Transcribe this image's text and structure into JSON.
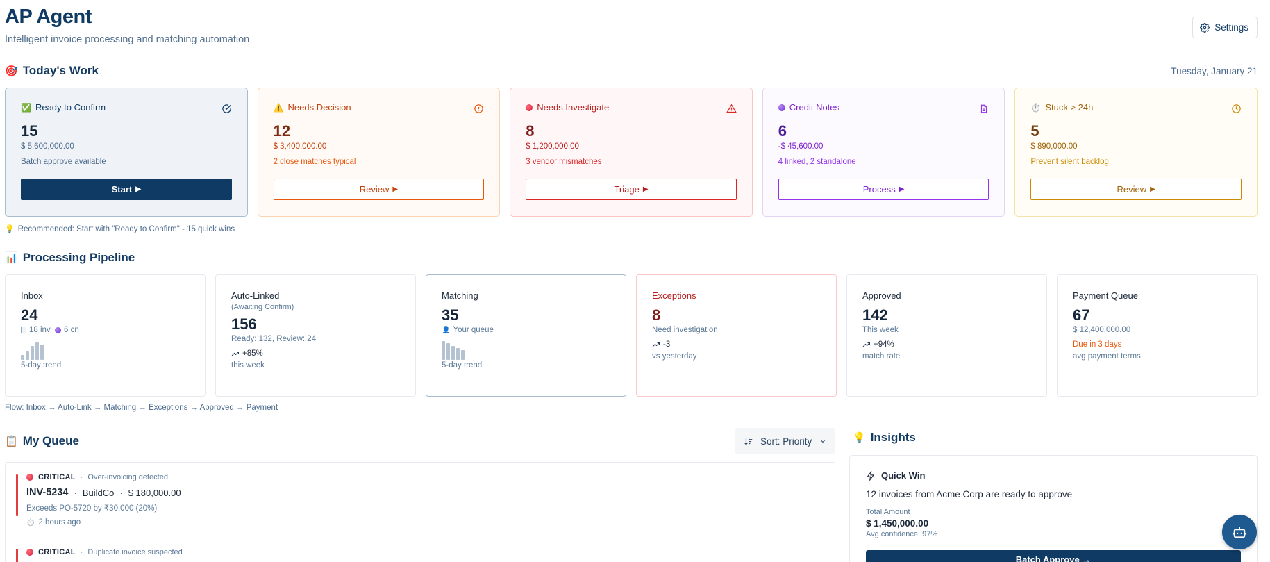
{
  "header": {
    "title": "AP Agent",
    "subtitle": "Intelligent invoice processing and matching automation",
    "settings_label": "Settings",
    "settings_icon": "gear-icon"
  },
  "todays_work": {
    "title": "Today's Work",
    "emoji": "🎯",
    "date": "Tuesday, January 21",
    "cards": [
      {
        "emoji": "✅",
        "label": "Ready to Confirm",
        "count": "15",
        "amount": "$ 5,600,000.00",
        "note": "Batch approve available",
        "button": "Start",
        "icon": "check-circle-icon",
        "color": "#0f3a64",
        "bg": "#eff3f7",
        "border": "#a9bccf",
        "num_color": "#16263a",
        "text_color": "#4b6a8c"
      },
      {
        "emoji": "⚠️",
        "label": "Needs Decision",
        "count": "12",
        "amount": "$ 3,400,000.00",
        "note": "2 close matches typical",
        "button": "Review",
        "icon": "alert-circle-icon",
        "color": "#c2410c",
        "bg": "#fffaf5",
        "border": "#fbd3b0",
        "num_color": "#7c2d12",
        "text_color": "#ea580c"
      },
      {
        "emoji": "🔴",
        "label": "Needs Investigate",
        "count": "8",
        "amount": "$ 1,200,000.00",
        "note": "3 vendor mismatches",
        "button": "Triage",
        "icon": "warning-triangle-icon",
        "color": "#b91c1c",
        "bg": "#fff7f7",
        "border": "#fbc5c5",
        "num_color": "#7f1d1d",
        "text_color": "#dc2626"
      },
      {
        "emoji": "🟣",
        "label": "Credit Notes",
        "count": "6",
        "amount": "-$ 45,600.00",
        "note": "4 linked, 2 standalone",
        "button": "Process",
        "icon": "document-icon",
        "color": "#7e22ce",
        "bg": "#fcfaff",
        "border": "#e2d4f5",
        "num_color": "#4c1d95",
        "text_color": "#9333ea"
      },
      {
        "emoji": "⏱️",
        "label": "Stuck > 24h",
        "count": "5",
        "amount": "$ 890,000.00",
        "note": "Prevent silent backlog",
        "button": "Review",
        "icon": "clock-icon",
        "color": "#a16207",
        "bg": "#fffdf5",
        "border": "#f3e3a8",
        "num_color": "#713f12",
        "text_color": "#ca8a04"
      }
    ],
    "recommendation_emoji": "💡",
    "recommendation": "Recommended: Start with \"Ready to Confirm\" - 15 quick wins"
  },
  "pipeline": {
    "title": "Processing Pipeline",
    "emoji": "📊",
    "inbox": {
      "label": "Inbox",
      "count": "24",
      "inv": "18 inv,",
      "cn": "6 cn",
      "trend_label": "5-day trend",
      "trend": [
        0.25,
        0.45,
        0.7,
        0.9,
        0.8
      ]
    },
    "autolinked": {
      "label": "Auto-Linked",
      "sub": "(Awaiting Confirm)",
      "count": "156",
      "detail": "Ready: 132, Review: 24",
      "change": "+85%",
      "change_label": "this week"
    },
    "matching": {
      "label": "Matching",
      "count": "35",
      "detail": "Your queue",
      "trend_label": "5-day trend",
      "trend": [
        0.95,
        0.85,
        0.7,
        0.6,
        0.5
      ]
    },
    "exceptions": {
      "label": "Exceptions",
      "count": "8",
      "detail": "Need investigation",
      "change": "-3",
      "change_label": "vs yesterday"
    },
    "approved": {
      "label": "Approved",
      "count": "142",
      "detail": "This week",
      "change": "+94%",
      "change_label": "match rate"
    },
    "payment": {
      "label": "Payment Queue",
      "count": "67",
      "amount": "$ 12,400,000.00",
      "due": "Due in 3 days",
      "due_label": "avg payment terms"
    },
    "flow": "Flow: Inbox → Auto-Link → Matching → Exceptions → Approved → Payment"
  },
  "queue": {
    "title": "My Queue",
    "emoji": "📋",
    "sort_label": "Sort: Priority",
    "items": [
      {
        "severity": "CRITICAL",
        "reason": "Over-invoicing detected",
        "invoice": "INV-5234",
        "vendor": "BuildCo",
        "amount": "$ 180,000.00",
        "detail": "Exceeds PO-5720 by ₹30,000 (20%)",
        "time_emoji": "⏱️",
        "time": "2 hours ago"
      },
      {
        "severity": "CRITICAL",
        "reason": "Duplicate invoice suspected"
      }
    ]
  },
  "insights": {
    "title": "Insights",
    "emoji": "💡",
    "card_title": "Quick Win",
    "text": "12 invoices from Acme Corp are ready to approve",
    "total_label": "Total Amount",
    "total": "$ 1,450,000.00",
    "confidence": "Avg confidence: 97%",
    "button": "Batch Approve →"
  },
  "assistant_icon": "robot-icon"
}
